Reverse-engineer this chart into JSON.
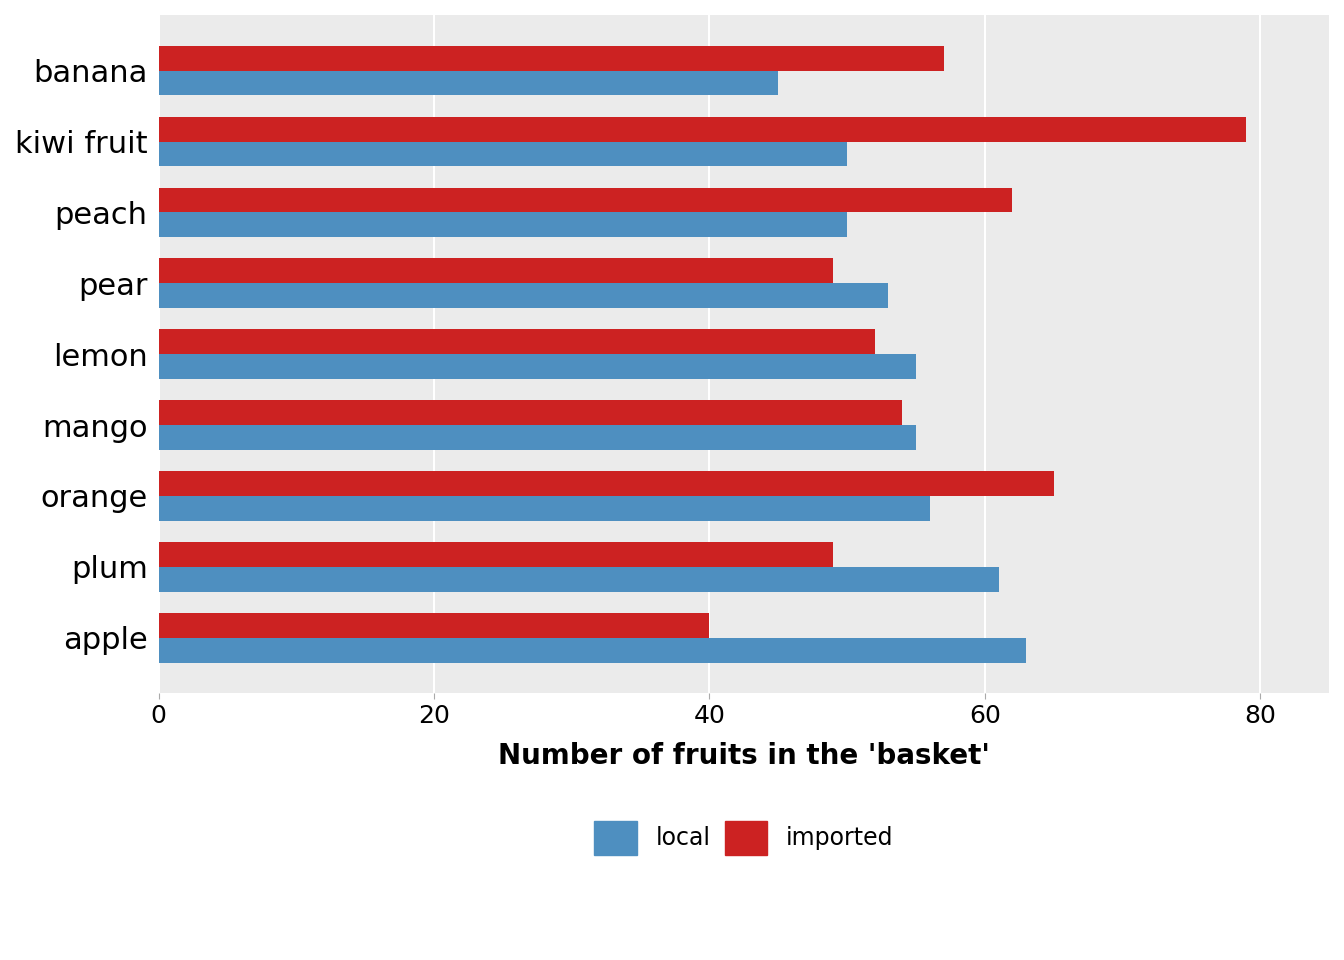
{
  "fruits": [
    "apple",
    "plum",
    "orange",
    "mango",
    "lemon",
    "pear",
    "peach",
    "kiwi fruit",
    "banana"
  ],
  "local": [
    63,
    61,
    56,
    55,
    55,
    53,
    50,
    50,
    45
  ],
  "imported": [
    40,
    49,
    65,
    54,
    52,
    49,
    62,
    79,
    57
  ],
  "local_color": "#4e8fc0",
  "imported_color": "#cc2222",
  "background_color": "#ebebeb",
  "xlabel": "Number of fruits in the 'basket'",
  "xlim": [
    0,
    85
  ],
  "xticks": [
    0,
    20,
    40,
    60,
    80
  ],
  "xlabel_fontsize": 20,
  "tick_fontsize": 18,
  "label_fontsize": 22,
  "bar_height": 0.35,
  "legend_fontsize": 17
}
